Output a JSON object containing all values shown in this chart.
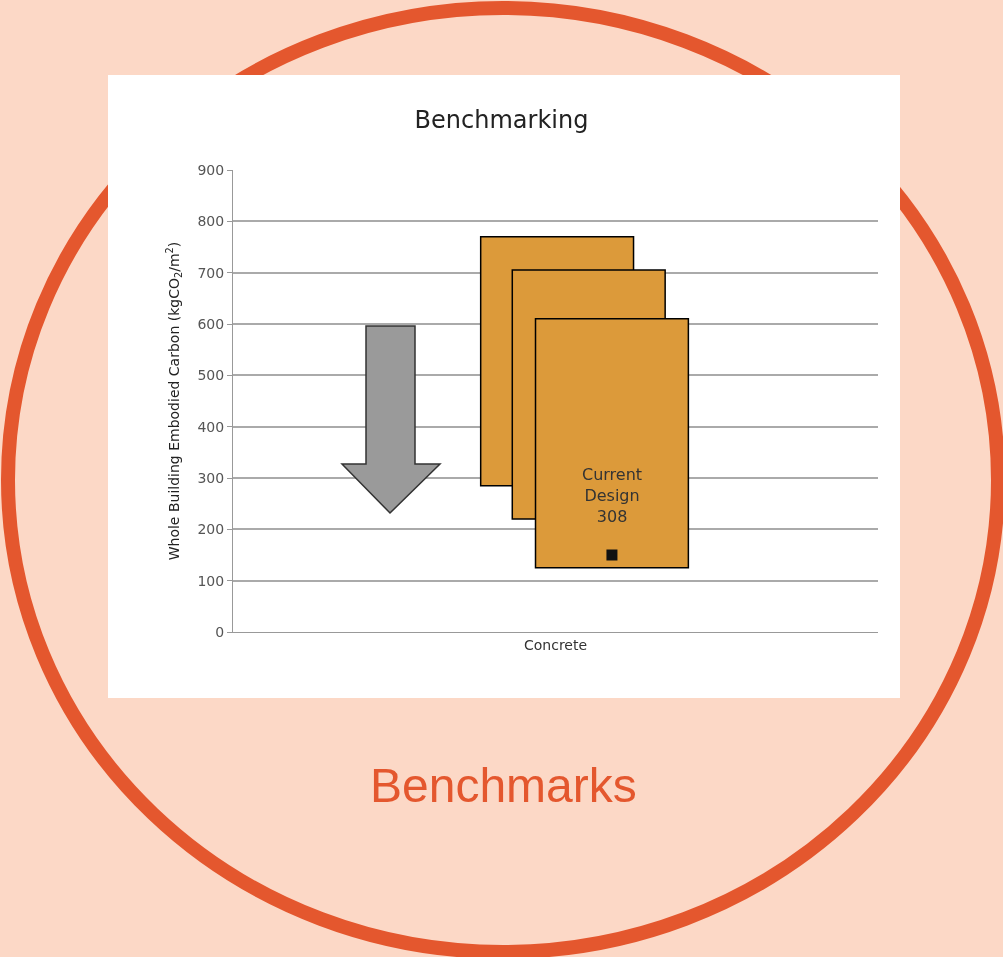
{
  "chart_data": {
    "type": "bar",
    "title": "Benchmarking",
    "ylabel": "Whole Building Embodied Carbon (kgCO$_{2}$/m$^{2}$)",
    "categories": [
      "Concrete"
    ],
    "series": [
      {
        "color": "#dc9a3a",
        "values": [
          485
        ],
        "base": [
          285
        ]
      },
      {
        "color": "#dc9a3a",
        "values": [
          485
        ],
        "base": [
          220
        ]
      },
      {
        "color": "#dc9a3a",
        "values": [
          485
        ],
        "base": [
          125
        ]
      },
      {
        "type": "scatter",
        "color": "#111111",
        "values": [
          150
        ],
        "marker": "square"
      }
    ],
    "annotations": [
      "Current\nDesign\n308",
      "Benchmarks"
    ],
    "ylim": [
      0,
      900
    ],
    "yticks": [
      0,
      100,
      200,
      300,
      400,
      500,
      600,
      700,
      800,
      900
    ],
    "grid": "y"
  }
}
